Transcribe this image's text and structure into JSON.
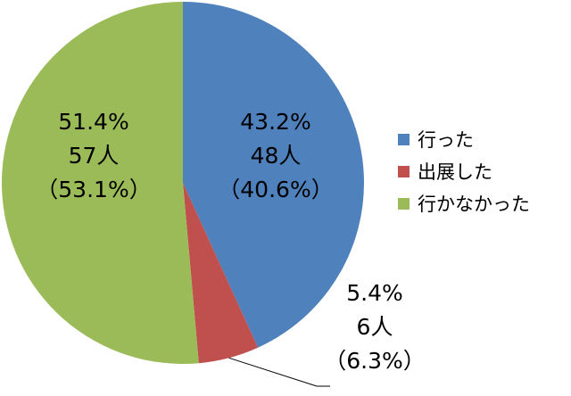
{
  "chart_data": {
    "type": "pie",
    "start": "top",
    "direction": "clockwise",
    "slices": [
      {
        "name": "行った",
        "value": 43.2,
        "color": "#4F81BD",
        "label": {
          "pct": "43.2%",
          "count": "48人",
          "sub": "（40.6%）"
        }
      },
      {
        "name": "出展した",
        "value": 5.4,
        "color": "#C0504D",
        "label": {
          "pct": "5.4%",
          "count": "6人",
          "sub": "（6.3%）"
        }
      },
      {
        "name": "行かなかった",
        "value": 51.4,
        "color": "#9BBB59",
        "label": {
          "pct": "51.4%",
          "count": "57人",
          "sub": "（53.1%）"
        }
      }
    ],
    "legend_position": "right"
  }
}
